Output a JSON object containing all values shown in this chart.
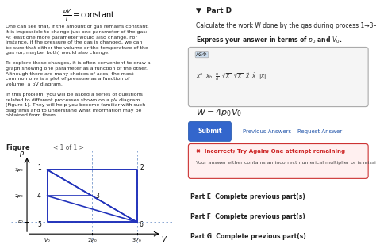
{
  "left_panel_bg": "#dce8f0",
  "right_panel_bg": "#ffffff",
  "page_bg": "#ffffff",
  "left_text_lines": [
    "One can see that, if the amount of gas remains constant,",
    "it is impossible to change just one parameter of the gas:",
    "At least one more parameter would also change. For",
    "instance, if the pressure of the gas is changed, we can",
    "be sure that either the volume or the temperature of the",
    "gas (or, maybe, both) would also change.",
    "",
    "To explore these changes, it is often convenient to draw a",
    "graph showing one parameter as a function of the other.",
    "Although there are many choices of axes, the most",
    "common one is a plot of pressure as a function of",
    "volume: a pV diagram.",
    "",
    "In this problem, you will be asked a series of questions",
    "related to different processes shown on a pV diagram",
    "(Figure 1). They will help you become familiar with such",
    "diagrams and to understand what information may be",
    "obtained from them."
  ],
  "formula_top": "$\\frac{pV}{T} = \\mathrm{constant}.$",
  "figure_label": "Figure",
  "nav_text": "< 1 of 1 >",
  "part_d_label": "Part D",
  "part_d_q1": "Calculate the work W done by the gas during process 1→3→6.",
  "part_d_q2": "Express your answer in terms of $p_0$ and $V_0$.",
  "answer_text": "$W = 4p_0V_0$",
  "incorrect_text": "Incorrect; Try Again; One attempt remaining",
  "incorrect_sub": "Your answer either contains an incorrect numerical multiplier or is missing one.",
  "part_e": "Part E  Complete previous part(s)",
  "part_f": "Part F  Complete previous part(s)",
  "part_g": "Part G  Complete previous part(s)",
  "submit_btn": "Submit",
  "prev_ans_btn": "Previous Answers",
  "req_ans_btn": "Request Answer",
  "diagram": {
    "points": {
      "1": [
        1,
        3
      ],
      "2": [
        3,
        3
      ],
      "3": [
        2,
        2
      ],
      "4": [
        1,
        2
      ],
      "5": [
        1,
        1
      ],
      "6": [
        3,
        1
      ]
    },
    "line_color": "#2233bb",
    "dash_color": "#7799cc",
    "bg_color": "#dce8f0"
  }
}
